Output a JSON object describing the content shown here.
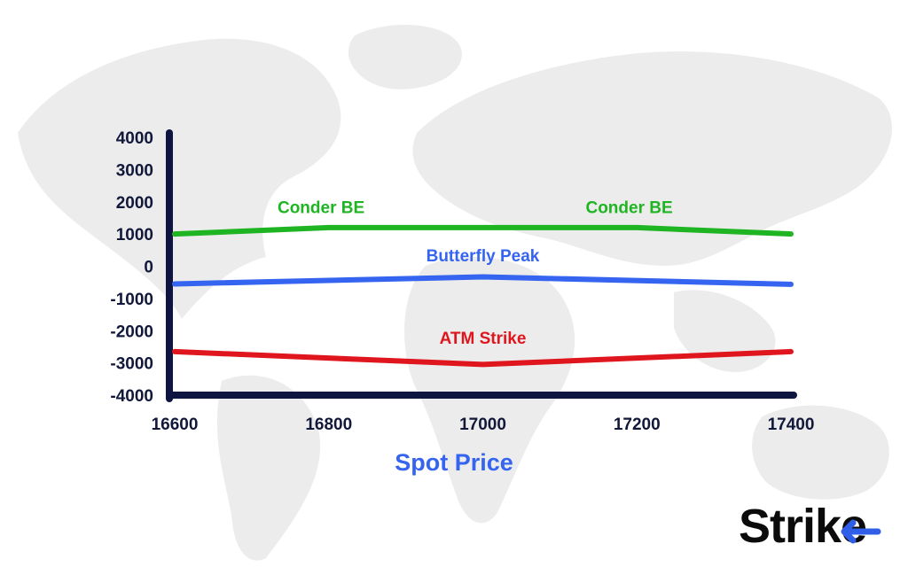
{
  "chart_data": {
    "type": "line",
    "title": "",
    "xlabel": "Spot Price",
    "ylabel": "",
    "xlim": [
      16600,
      17400
    ],
    "ylim": [
      -4000,
      4000
    ],
    "x_ticks": [
      16600,
      16800,
      17000,
      17200,
      17400
    ],
    "y_ticks": [
      4000,
      3000,
      2000,
      1000,
      0,
      -1000,
      -2000,
      -3000,
      -4000
    ],
    "grid": false,
    "legend": "none",
    "series": [
      {
        "label": "Conder BE",
        "color": "#1fb522",
        "points": [
          [
            16600,
            1000
          ],
          [
            16800,
            1200
          ],
          [
            17200,
            1200
          ],
          [
            17400,
            1000
          ]
        ]
      },
      {
        "label": "Butterfly Peak",
        "color": "#3564f0",
        "points": [
          [
            16600,
            -550
          ],
          [
            17000,
            -330
          ],
          [
            17400,
            -560
          ]
        ]
      },
      {
        "label": "ATM Strike",
        "color": "#e0161e",
        "points": [
          [
            16600,
            -2650
          ],
          [
            17000,
            -3050
          ],
          [
            17400,
            -2650
          ]
        ]
      }
    ],
    "annotations": [
      {
        "text": "Conder BE",
        "x": 16790,
        "y": 1650,
        "color": "#1fb522"
      },
      {
        "text": "Conder BE",
        "x": 17190,
        "y": 1650,
        "color": "#1fb522"
      },
      {
        "text": "Butterfly Peak",
        "x": 17000,
        "y": 150,
        "color": "#3564f0"
      },
      {
        "text": "ATM Strike",
        "x": 17000,
        "y": -2400,
        "color": "#e0161e"
      }
    ]
  },
  "colors": {
    "axis": "#0d1540",
    "xlabel": "#3564f0",
    "map": "#ececec",
    "logo_accent": "#2f5fe8"
  },
  "logo": {
    "text": "Strike"
  }
}
